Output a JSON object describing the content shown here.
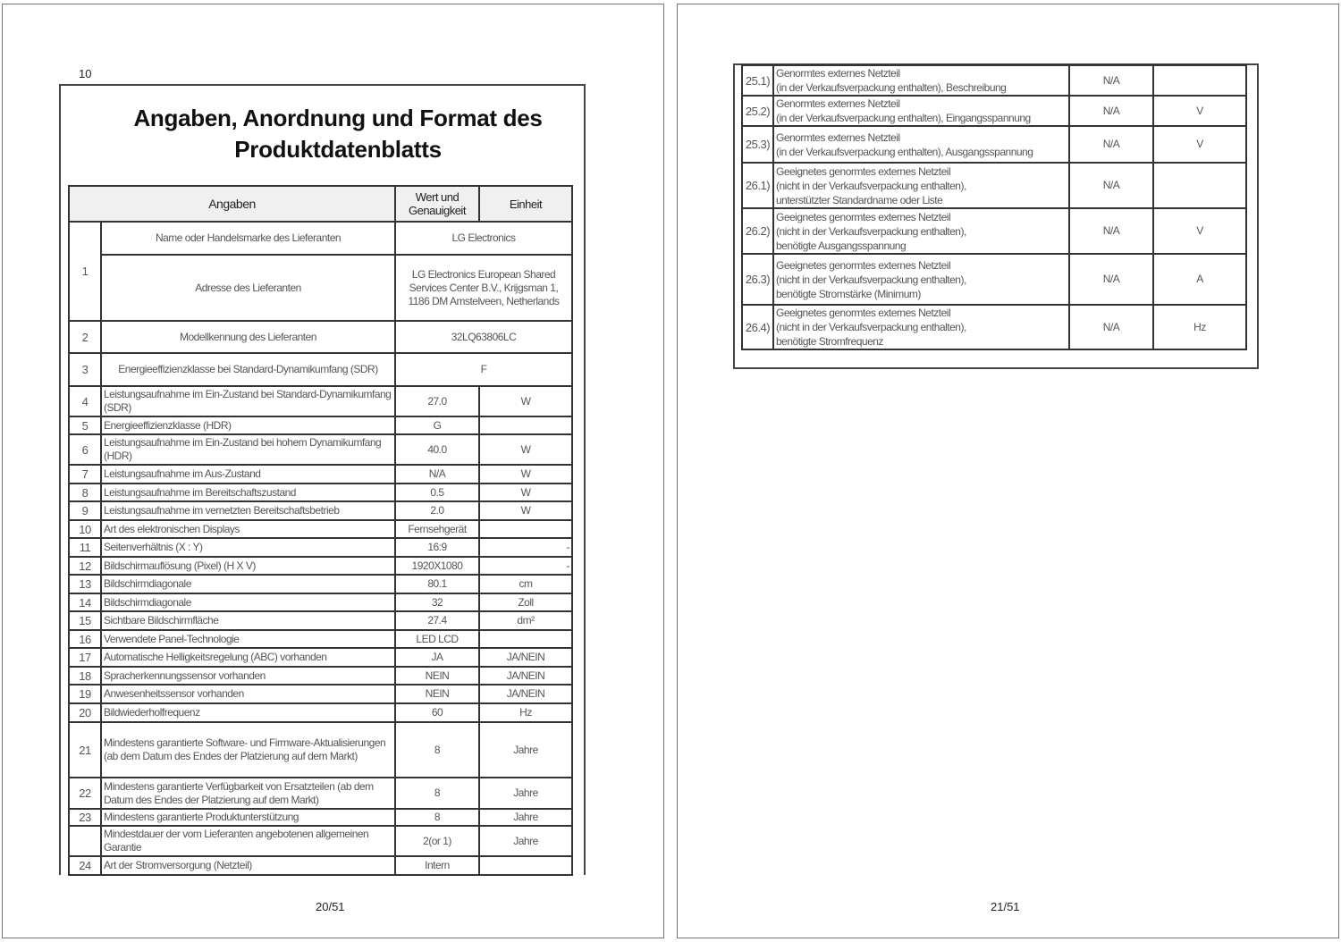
{
  "page1": {
    "header_number": "10",
    "title_line1": "Angaben, Anordnung und Format des",
    "title_line2": "Produktdatenblatts",
    "columns": [
      "Angaben",
      "Wert und Genauigkeit",
      "Einheit"
    ],
    "rows": [
      {
        "num": "1",
        "desc": "Name oder Handelsmarke des Lieferanten",
        "value": "LG Electronics",
        "unit": ""
      },
      {
        "num": "",
        "desc": "Adresse des Lieferanten",
        "value": "LG Electronics European Shared Services Center B.V., Krijgsman 1, 1186 DM Amstelveen, Netherlands",
        "unit": ""
      },
      {
        "num": "2",
        "desc": "Modellkennung des Lieferanten",
        "value": "32LQ63806LC",
        "unit": ""
      },
      {
        "num": "3",
        "desc": "Energieeffizienzklasse bei Standard-Dynamikumfang (SDR)",
        "value": "F",
        "unit": ""
      },
      {
        "num": "4",
        "desc": "Leistungsaufnahme im Ein-Zustand bei Standard-Dynamikumfang (SDR)",
        "value": "27.0",
        "unit": "W"
      },
      {
        "num": "5",
        "desc": "Energieeffizienzklasse (HDR)",
        "value": "G",
        "unit": ""
      },
      {
        "num": "6",
        "desc": "Leistungsaufnahme im Ein-Zustand bei hohem Dynamikumfang (HDR)",
        "value": "40.0",
        "unit": "W"
      },
      {
        "num": "7",
        "desc": "Leistungsaufnahme im Aus-Zustand",
        "value": "N/A",
        "unit": "W"
      },
      {
        "num": "8",
        "desc": "Leistungsaufnahme im Bereitschaftszustand",
        "value": "0.5",
        "unit": "W"
      },
      {
        "num": "9",
        "desc": "Leistungsaufnahme im vernetzten Bereitschaftsbetrieb",
        "value": "2.0",
        "unit": "W"
      },
      {
        "num": "10",
        "desc": "Art des elektronischen Displays",
        "value": "Fernsehgerät",
        "unit": ""
      },
      {
        "num": "11",
        "desc": "Seitenverhältnis (X : Y)",
        "value": "16:9",
        "unit": "-"
      },
      {
        "num": "12",
        "desc": "Bildschirmauflösung (Pixel) (H X V)",
        "value": "1920X1080",
        "unit": "-"
      },
      {
        "num": "13",
        "desc": "Bildschirmdiagonale",
        "value": "80.1",
        "unit": "cm"
      },
      {
        "num": "14",
        "desc": "Bildschirmdiagonale",
        "value": "32",
        "unit": "Zoll"
      },
      {
        "num": "15",
        "desc": "Sichtbare Bildschirmfläche",
        "value": "27.4",
        "unit": "dm²"
      },
      {
        "num": "16",
        "desc": "Verwendete Panel-Technologie",
        "value": "LED LCD",
        "unit": ""
      },
      {
        "num": "17",
        "desc": "Automatische Helligkeitsregelung (ABC) vorhanden",
        "value": "JA",
        "unit": "JA/NEIN"
      },
      {
        "num": "18",
        "desc": "Spracherkennungssensor vorhanden",
        "value": "NEIN",
        "unit": "JA/NEIN"
      },
      {
        "num": "19",
        "desc": "Anwesenheitssensor vorhanden",
        "value": "NEIN",
        "unit": "JA/NEIN"
      },
      {
        "num": "20",
        "desc": "Bildwiederholfrequenz",
        "value": "60",
        "unit": "Hz"
      },
      {
        "num": "21",
        "desc": "Mindestens garantierte Software- und Firmware-Aktualisierungen (ab dem Datum des Endes der Platzierung auf dem Markt)",
        "value": "8",
        "unit": "Jahre"
      },
      {
        "num": "22",
        "desc": "Mindestens garantierte Verfügbarkeit von Ersatzteilen (ab dem Datum des Endes der Platzierung auf dem Markt)",
        "value": "8",
        "unit": "Jahre"
      },
      {
        "num": "23",
        "desc": "Mindestens garantierte Produktunterstützung",
        "value": "8",
        "unit": "Jahre"
      },
      {
        "num": "",
        "desc": "Mindestdauer der vom Lieferanten angebotenen allgemeinen Garantie",
        "value": "2(or 1)",
        "unit": "Jahre"
      },
      {
        "num": "24",
        "desc": "Art der Stromversorgung (Netzteil)",
        "value": "Intern",
        "unit": ""
      }
    ],
    "footer": "20/51"
  },
  "page2": {
    "rows": [
      {
        "num": "25.1)",
        "desc": "Genormtes externes Netzteil\n(in der Verkaufsverpackung enthalten), Beschreibung",
        "value": "N/A",
        "unit": ""
      },
      {
        "num": "25.2)",
        "desc": "Genormtes externes Netzteil\n(in der Verkaufsverpackung enthalten), Eingangsspannung",
        "value": "N/A",
        "unit": "V"
      },
      {
        "num": "25.3)",
        "desc": "Genormtes externes Netzteil\n(in der Verkaufsverpackung enthalten), Ausgangsspannung",
        "value": "N/A",
        "unit": "V"
      },
      {
        "num": "26.1)",
        "desc": "Geeignetes genormtes externes Netzteil\n(nicht in der Verkaufsverpackung enthalten),\nunterstützter Standardname oder Liste",
        "value": "N/A",
        "unit": ""
      },
      {
        "num": "26.2)",
        "desc": "Geeignetes genormtes externes Netzteil\n(nicht in der Verkaufsverpackung enthalten),\nbenötigte Ausgangsspannung",
        "value": "N/A",
        "unit": "V"
      },
      {
        "num": "26.3)",
        "desc": "Geeignetes genormtes externes Netzteil\n(nicht in der Verkaufsverpackung enthalten),\nbenötigte Stromstärke (Minimum)",
        "value": "N/A",
        "unit": "A"
      },
      {
        "num": "26.4)",
        "desc": "Geeignetes genormtes externes Netzteil\n(nicht in der Verkaufsverpackung enthalten),\n benötigte Stromfrequenz",
        "value": "N/A",
        "unit": "Hz"
      }
    ],
    "footer": "21/51"
  }
}
